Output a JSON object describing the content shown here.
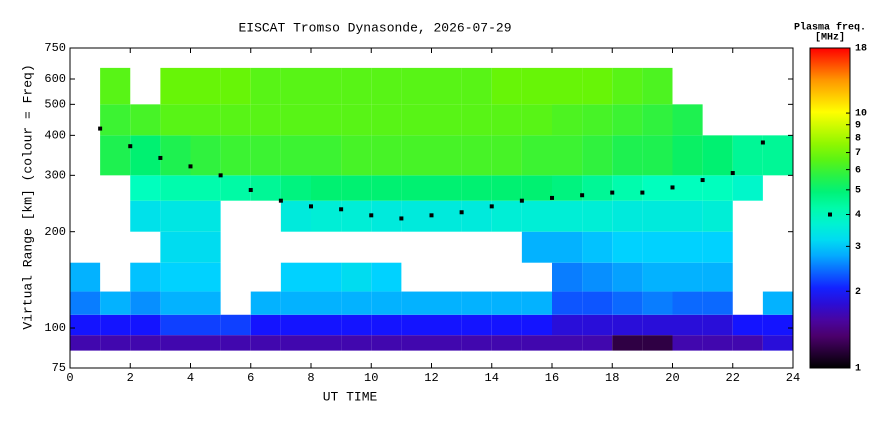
{
  "chart_data": {
    "type": "heatmap",
    "title": "EISCAT Tromso Dynasonde, 2026-07-29",
    "x_label": "UT TIME",
    "y_label": "Virtual Range [km] (colour = Freq)",
    "colorbar_title": "Plasma freq.",
    "colorbar_unit": "[MHz]",
    "xlim": [
      0,
      24
    ],
    "xticks": [
      0,
      2,
      4,
      6,
      8,
      10,
      12,
      14,
      16,
      18,
      20,
      22,
      24
    ],
    "ylim": [
      75,
      750
    ],
    "yticks": [
      75,
      100,
      200,
      300,
      400,
      500,
      600,
      750
    ],
    "y_log": true,
    "clim": [
      1,
      18
    ],
    "cticks": [
      1,
      2,
      3,
      4,
      5,
      6,
      7,
      8,
      9,
      10,
      18
    ],
    "c_log": true,
    "colorbar_marker": 4,
    "x_edges": [
      0,
      1,
      2,
      3,
      4,
      5,
      6,
      7,
      8,
      9,
      10,
      11,
      12,
      13,
      14,
      15,
      16,
      17,
      18,
      19,
      20,
      21,
      22,
      23,
      24
    ],
    "y_edges": [
      85,
      95,
      110,
      130,
      160,
      200,
      250,
      300,
      400,
      500,
      650
    ],
    "z": [
      [
        1.6,
        1.6,
        1.6,
        1.6,
        1.6,
        1.6,
        1.6,
        1.6,
        1.6,
        1.6,
        1.6,
        1.6,
        1.6,
        1.6,
        1.6,
        1.6,
        1.6,
        1.6,
        1.2,
        1.2,
        1.6,
        1.6,
        1.6,
        1.8
      ],
      [
        2.0,
        2.0,
        2.0,
        2.2,
        2.2,
        2.2,
        2.0,
        2.0,
        2.0,
        2.0,
        2.0,
        2.0,
        2.0,
        2.0,
        2.0,
        2.0,
        1.8,
        1.8,
        1.8,
        1.8,
        1.8,
        1.8,
        2.0,
        2.0
      ],
      [
        2.5,
        2.8,
        2.6,
        2.8,
        2.8,
        null,
        2.8,
        2.8,
        2.8,
        2.8,
        2.8,
        2.8,
        2.8,
        2.8,
        2.8,
        2.8,
        2.3,
        2.3,
        2.4,
        2.5,
        2.4,
        2.4,
        null,
        2.8
      ],
      [
        2.8,
        null,
        2.9,
        3.0,
        3.0,
        null,
        null,
        3.0,
        3.0,
        3.2,
        3.0,
        null,
        null,
        null,
        null,
        null,
        2.5,
        2.6,
        2.7,
        2.8,
        2.8,
        2.8,
        null,
        null
      ],
      [
        null,
        null,
        null,
        3.2,
        3.2,
        null,
        null,
        null,
        null,
        null,
        null,
        null,
        null,
        null,
        null,
        2.8,
        2.8,
        2.9,
        3.0,
        3.0,
        3.0,
        3.0,
        null,
        null
      ],
      [
        null,
        null,
        3.3,
        3.4,
        3.4,
        null,
        null,
        3.5,
        3.6,
        3.6,
        3.5,
        3.5,
        3.5,
        3.5,
        3.6,
        3.6,
        3.6,
        3.6,
        3.5,
        3.5,
        3.5,
        3.6,
        null,
        null
      ],
      [
        null,
        null,
        4.0,
        4.2,
        4.2,
        4.3,
        4.5,
        4.8,
        5.0,
        5.0,
        5.0,
        5.0,
        5.0,
        5.0,
        5.0,
        5.0,
        4.8,
        4.5,
        4.2,
        4.0,
        4.0,
        4.0,
        3.8,
        null
      ],
      [
        null,
        5.5,
        5.0,
        5.5,
        5.8,
        6.0,
        6.0,
        6.0,
        6.0,
        6.2,
        6.2,
        6.2,
        6.2,
        6.2,
        6.2,
        6.0,
        6.0,
        5.8,
        5.5,
        5.5,
        5.2,
        5.0,
        4.5,
        4.5
      ],
      [
        null,
        6.0,
        6.2,
        6.5,
        6.5,
        6.5,
        6.5,
        6.5,
        6.5,
        6.5,
        6.5,
        6.5,
        6.5,
        6.5,
        6.5,
        6.5,
        6.3,
        6.2,
        6.0,
        5.8,
        5.5,
        null,
        null,
        null
      ],
      [
        null,
        6.5,
        null,
        6.8,
        6.8,
        6.8,
        6.5,
        6.5,
        6.5,
        6.5,
        6.5,
        6.5,
        6.5,
        6.5,
        6.8,
        6.8,
        6.8,
        6.8,
        6.5,
        6.3,
        null,
        null,
        null,
        null
      ]
    ],
    "trace_x": [
      1,
      2,
      3,
      4,
      5,
      6,
      7,
      8,
      9,
      10,
      11,
      12,
      13,
      14,
      15,
      16,
      17,
      18,
      19,
      20,
      21,
      22,
      23
    ],
    "trace_y": [
      420,
      370,
      340,
      320,
      300,
      270,
      250,
      240,
      235,
      225,
      220,
      225,
      230,
      240,
      250,
      255,
      260,
      265,
      265,
      275,
      290,
      305,
      380
    ]
  }
}
